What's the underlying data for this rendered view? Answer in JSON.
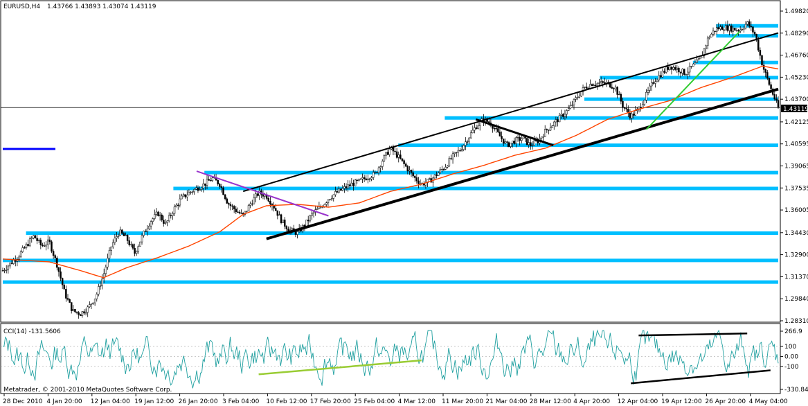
{
  "window": {
    "symbol_label": "EURUSD,H4",
    "ohlc_label": "1.43766 1.43893 1.43074 1.43119",
    "copyright": "Metatrader, © 2001-2010 MetaQuotes Software Corp."
  },
  "chart_data": [
    {
      "type": "candlestick",
      "symbol": "EURUSD",
      "timeframe": "H4",
      "open": 1.43766,
      "high": 1.43893,
      "low": 1.43074,
      "close": 1.43119,
      "current_price_label": "1.43119",
      "current_price": 1.43119,
      "ylim": [
        1.2831,
        1.4982
      ],
      "y_ticks": [
        "1.49820",
        "1.48290",
        "1.46760",
        "1.45230",
        "1.43700",
        "1.42125",
        "1.40595",
        "1.39065",
        "1.37535",
        "1.36005",
        "1.34430",
        "1.32900",
        "1.31370",
        "1.29840",
        "1.28310"
      ],
      "x_ticks": [
        "28 Dec 2010",
        "4 Jan 20:00",
        "12 Jan 04:00",
        "19 Jan 12:00",
        "26 Jan 20:00",
        "3 Feb 04:00",
        "10 Feb 12:00",
        "17 Feb 20:00",
        "25 Feb 04:00",
        "4 Mar 12:00",
        "11 Mar 20:00",
        "21 Mar 04:00",
        "28 Mar 12:00",
        "4 Apr 20:00",
        "12 Apr 04:00",
        "19 Apr 12:00",
        "26 Apr 20:00",
        "4 May 04:00"
      ],
      "price_path": [
        [
          0,
          1.318
        ],
        [
          2,
          1.328
        ],
        [
          4,
          1.342
        ],
        [
          5,
          1.335
        ],
        [
          6,
          1.338
        ],
        [
          7,
          1.322
        ],
        [
          8,
          1.302
        ],
        [
          9,
          1.29
        ],
        [
          10,
          1.288
        ],
        [
          11,
          1.292
        ],
        [
          12,
          1.3
        ],
        [
          13,
          1.315
        ],
        [
          14,
          1.335
        ],
        [
          15,
          1.345
        ],
        [
          16,
          1.34
        ],
        [
          17,
          1.33
        ],
        [
          18,
          1.342
        ],
        [
          19,
          1.352
        ],
        [
          20,
          1.358
        ],
        [
          21,
          1.35
        ],
        [
          22,
          1.36
        ],
        [
          23,
          1.368
        ],
        [
          24,
          1.372
        ],
        [
          25,
          1.375
        ],
        [
          26,
          1.378
        ],
        [
          27,
          1.382
        ],
        [
          28,
          1.378
        ],
        [
          29,
          1.365
        ],
        [
          30,
          1.36
        ],
        [
          31,
          1.356
        ],
        [
          32,
          1.365
        ],
        [
          33,
          1.372
        ],
        [
          34,
          1.37
        ],
        [
          35,
          1.362
        ],
        [
          36,
          1.352
        ],
        [
          37,
          1.346
        ],
        [
          38,
          1.344
        ],
        [
          39,
          1.35
        ],
        [
          40,
          1.358
        ],
        [
          41,
          1.362
        ],
        [
          42,
          1.368
        ],
        [
          43,
          1.372
        ],
        [
          44,
          1.375
        ],
        [
          45,
          1.378
        ],
        [
          46,
          1.38
        ],
        [
          47,
          1.383
        ],
        [
          48,
          1.385
        ],
        [
          49,
          1.395
        ],
        [
          50,
          1.403
        ],
        [
          51,
          1.397
        ],
        [
          52,
          1.39
        ],
        [
          53,
          1.383
        ],
        [
          54,
          1.378
        ],
        [
          55,
          1.38
        ],
        [
          56,
          1.385
        ],
        [
          57,
          1.39
        ],
        [
          58,
          1.397
        ],
        [
          59,
          1.402
        ],
        [
          60,
          1.41
        ],
        [
          61,
          1.418
        ],
        [
          62,
          1.423
        ],
        [
          63,
          1.42
        ],
        [
          64,
          1.412
        ],
        [
          65,
          1.405
        ],
        [
          66,
          1.408
        ],
        [
          67,
          1.41
        ],
        [
          68,
          1.405
        ],
        [
          69,
          1.408
        ],
        [
          70,
          1.415
        ],
        [
          71,
          1.42
        ],
        [
          72,
          1.425
        ],
        [
          73,
          1.43
        ],
        [
          74,
          1.438
        ],
        [
          75,
          1.445
        ],
        [
          76,
          1.448
        ],
        [
          77,
          1.448
        ],
        [
          78,
          1.448
        ],
        [
          79,
          1.445
        ],
        [
          80,
          1.432
        ],
        [
          81,
          1.425
        ],
        [
          82,
          1.43
        ],
        [
          83,
          1.44
        ],
        [
          84,
          1.45
        ],
        [
          85,
          1.455
        ],
        [
          86,
          1.46
        ],
        [
          87,
          1.458
        ],
        [
          88,
          1.455
        ],
        [
          89,
          1.46
        ],
        [
          90,
          1.465
        ],
        [
          91,
          1.48
        ],
        [
          92,
          1.486
        ],
        [
          93,
          1.487
        ],
        [
          94,
          1.486
        ],
        [
          95,
          1.485
        ],
        [
          96,
          1.49
        ],
        [
          97,
          1.482
        ],
        [
          98,
          1.46
        ],
        [
          99,
          1.445
        ],
        [
          100,
          1.431
        ]
      ],
      "ma_path": [
        [
          0,
          1.326
        ],
        [
          6,
          1.324
        ],
        [
          10,
          1.318
        ],
        [
          13,
          1.313
        ],
        [
          16,
          1.32
        ],
        [
          20,
          1.327
        ],
        [
          24,
          1.335
        ],
        [
          28,
          1.345
        ],
        [
          31,
          1.357
        ],
        [
          34,
          1.363
        ],
        [
          38,
          1.364
        ],
        [
          42,
          1.362
        ],
        [
          46,
          1.365
        ],
        [
          50,
          1.373
        ],
        [
          54,
          1.378
        ],
        [
          58,
          1.385
        ],
        [
          62,
          1.391
        ],
        [
          66,
          1.398
        ],
        [
          70,
          1.403
        ],
        [
          74,
          1.412
        ],
        [
          78,
          1.423
        ],
        [
          82,
          1.43
        ],
        [
          86,
          1.436
        ],
        [
          90,
          1.445
        ],
        [
          94,
          1.452
        ],
        [
          98,
          1.46
        ],
        [
          100,
          1.458
        ]
      ],
      "support_resistance_levels": [
        1.488,
        1.481,
        1.4625,
        1.452,
        1.437,
        1.424,
        1.405,
        1.386,
        1.375,
        1.344,
        1.325,
        1.31
      ],
      "trendlines": [
        {
          "color": "#000000",
          "points": [
            [
              31,
              1.373
            ],
            [
              100,
              1.483
            ]
          ]
        },
        {
          "color": "#000000",
          "points": [
            [
              34,
              1.34
            ],
            [
              100,
              1.444
            ]
          ]
        },
        {
          "color": "#9933cc",
          "points": [
            [
              25,
              1.387
            ],
            [
              42,
              1.356
            ]
          ]
        },
        {
          "color": "#000000",
          "points": [
            [
              61,
              1.423
            ],
            [
              71,
              1.405
            ]
          ]
        },
        {
          "color": "#33cc33",
          "points": [
            [
              83,
              1.416
            ],
            [
              95,
              1.484
            ]
          ]
        }
      ]
    },
    {
      "type": "line",
      "title": "CCI(14) -131.5606",
      "indicator_label": "CCI(14) -131.5606",
      "ylim": [
        -330.845,
        266.9
      ],
      "y_ticks": [
        "266.9",
        "100",
        "0.00",
        "-100",
        "-330.845"
      ],
      "levels": [
        100,
        0,
        -100
      ],
      "trendlines": [
        {
          "color": "#99cc33",
          "points": [
            [
              33,
              -180
            ],
            [
              54,
              -40
            ]
          ]
        },
        {
          "color": "#000000",
          "points": [
            [
              82,
              210
            ],
            [
              96,
              230
            ]
          ]
        },
        {
          "color": "#000000",
          "points": [
            [
              81,
              -270
            ],
            [
              99,
              -140
            ]
          ]
        }
      ]
    }
  ]
}
